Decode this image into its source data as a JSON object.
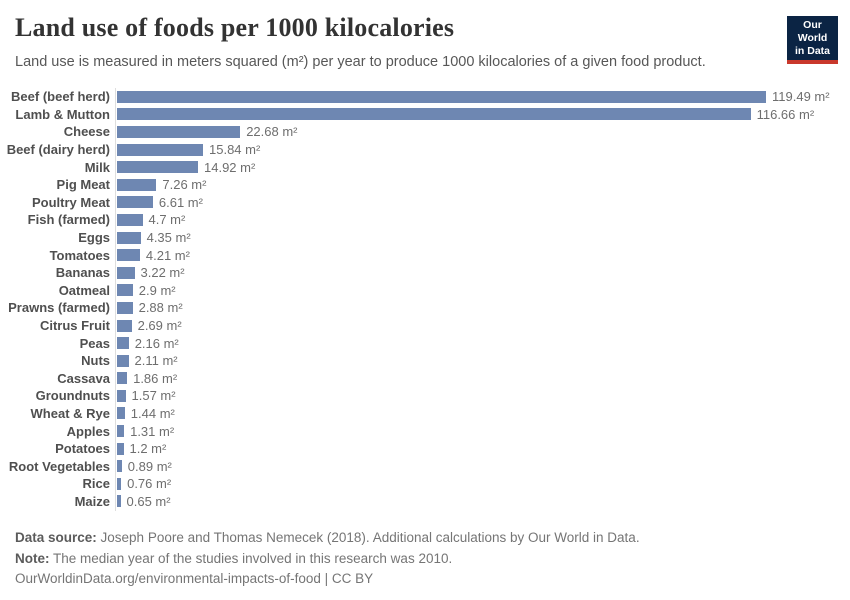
{
  "header": {
    "title": "Land use of foods per 1000 kilocalories",
    "subtitle": "Land use is measured in meters squared (m²) per year to produce 1000 kilocalories of a given food product.",
    "logo": {
      "line1": "Our World",
      "line2": "in Data",
      "bg_color": "#0b2444",
      "accent_color": "#c9382c"
    }
  },
  "chart_data": {
    "type": "bar",
    "orientation": "horizontal",
    "title": "Land use of foods per 1000 kilocalories",
    "unit": "m²",
    "xlabel": "",
    "ylabel": "",
    "xlim": [
      0,
      120
    ],
    "grid": false,
    "legend": false,
    "bar_color": "#6e87b2",
    "categories": [
      "Beef (beef herd)",
      "Lamb & Mutton",
      "Cheese",
      "Beef (dairy herd)",
      "Milk",
      "Pig Meat",
      "Poultry Meat",
      "Fish (farmed)",
      "Eggs",
      "Tomatoes",
      "Bananas",
      "Oatmeal",
      "Prawns (farmed)",
      "Citrus Fruit",
      "Peas",
      "Nuts",
      "Cassava",
      "Groundnuts",
      "Wheat & Rye",
      "Apples",
      "Potatoes",
      "Root Vegetables",
      "Rice",
      "Maize"
    ],
    "values": [
      119.49,
      116.66,
      22.68,
      15.84,
      14.92,
      7.26,
      6.61,
      4.7,
      4.35,
      4.21,
      3.22,
      2.9,
      2.88,
      2.69,
      2.16,
      2.11,
      1.86,
      1.57,
      1.44,
      1.31,
      1.2,
      0.89,
      0.76,
      0.65
    ],
    "value_labels": [
      "119.49 m²",
      "116.66 m²",
      "22.68 m²",
      "15.84 m²",
      "14.92 m²",
      "7.26 m²",
      "6.61 m²",
      "4.7 m²",
      "4.35 m²",
      "4.21 m²",
      "3.22 m²",
      "2.9 m²",
      "2.88 m²",
      "2.69 m²",
      "2.16 m²",
      "2.11 m²",
      "1.86 m²",
      "1.57 m²",
      "1.44 m²",
      "1.31 m²",
      "1.2 m²",
      "0.89 m²",
      "0.76 m²",
      "0.65 m²"
    ]
  },
  "footer": {
    "source_label": "Data source:",
    "source_text": " Joseph Poore and Thomas Nemecek (2018). Additional calculations by Our World in Data.",
    "note_label": "Note:",
    "note_text": " The median year of the studies involved in this research was 2010.",
    "citation_text": "OurWorldinData.org/environmental-impacts-of-food | CC BY"
  }
}
